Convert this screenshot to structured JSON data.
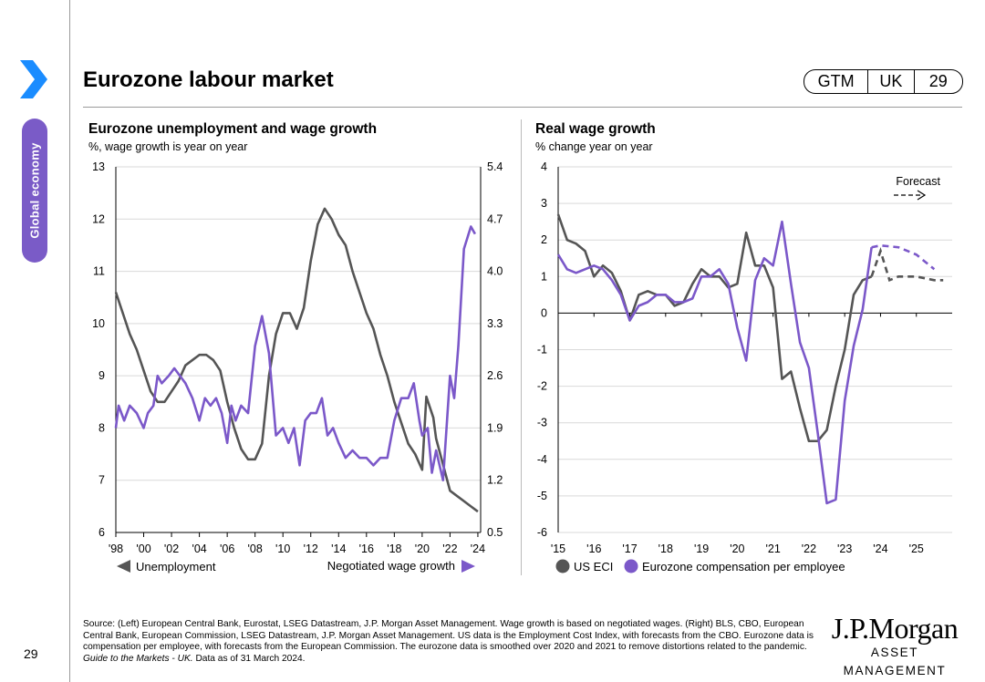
{
  "sidebar": {
    "section_label": "Global economy",
    "page_number": "29",
    "accent_color": "#7a5bc7",
    "chevron_color": "#1a8cff"
  },
  "header": {
    "title": "Eurozone labour market",
    "badge": {
      "gtm": "GTM",
      "region": "UK",
      "page": "29"
    }
  },
  "colors": {
    "grey": "#555555",
    "purple": "#7b58c9"
  },
  "chart_data": [
    {
      "type": "line",
      "title": "Eurozone unemployment and wage growth",
      "subtitle": "%, wage growth is year on year",
      "x_range": [
        1998,
        2024.2
      ],
      "x_ticks": [
        "'98",
        "'00",
        "'02",
        "'04",
        "'06",
        "'08",
        "'10",
        "'12",
        "'14",
        "'16",
        "'18",
        "'20",
        "'22",
        "'24"
      ],
      "ylim_left": [
        6,
        13
      ],
      "y_ticks_left": [
        "6",
        "7",
        "8",
        "9",
        "10",
        "11",
        "12",
        "13"
      ],
      "ylim_right": [
        0.5,
        5.4
      ],
      "y_ticks_right": [
        "0.5",
        "1.2",
        "1.9",
        "2.6",
        "3.3",
        "4.0",
        "4.7",
        "5.4"
      ],
      "grid": "horizontal",
      "series": [
        {
          "name": "Unemployment",
          "axis": "left",
          "legend_position": "bottom-left",
          "points": [
            [
              1998,
              10.6
            ],
            [
              1998.5,
              10.2
            ],
            [
              1999,
              9.8
            ],
            [
              1999.5,
              9.5
            ],
            [
              2000,
              9.1
            ],
            [
              2000.5,
              8.7
            ],
            [
              2001,
              8.5
            ],
            [
              2001.5,
              8.5
            ],
            [
              2002,
              8.7
            ],
            [
              2002.5,
              8.9
            ],
            [
              2003,
              9.2
            ],
            [
              2003.5,
              9.3
            ],
            [
              2004,
              9.4
            ],
            [
              2004.5,
              9.4
            ],
            [
              2005,
              9.3
            ],
            [
              2005.5,
              9.1
            ],
            [
              2006,
              8.5
            ],
            [
              2006.5,
              8.0
            ],
            [
              2007,
              7.6
            ],
            [
              2007.5,
              7.4
            ],
            [
              2008,
              7.4
            ],
            [
              2008.5,
              7.7
            ],
            [
              2009,
              9.0
            ],
            [
              2009.5,
              9.8
            ],
            [
              2010,
              10.2
            ],
            [
              2010.5,
              10.2
            ],
            [
              2011,
              9.9
            ],
            [
              2011.5,
              10.3
            ],
            [
              2012,
              11.2
            ],
            [
              2012.5,
              11.9
            ],
            [
              2013,
              12.2
            ],
            [
              2013.5,
              12.0
            ],
            [
              2014,
              11.7
            ],
            [
              2014.5,
              11.5
            ],
            [
              2015,
              11.0
            ],
            [
              2015.5,
              10.6
            ],
            [
              2016,
              10.2
            ],
            [
              2016.5,
              9.9
            ],
            [
              2017,
              9.4
            ],
            [
              2017.5,
              9.0
            ],
            [
              2018,
              8.5
            ],
            [
              2018.5,
              8.1
            ],
            [
              2019,
              7.7
            ],
            [
              2019.5,
              7.5
            ],
            [
              2020,
              7.2
            ],
            [
              2020.3,
              8.6
            ],
            [
              2020.8,
              8.2
            ],
            [
              2021,
              7.8
            ],
            [
              2021.5,
              7.3
            ],
            [
              2022,
              6.8
            ],
            [
              2022.5,
              6.7
            ],
            [
              2023,
              6.6
            ],
            [
              2023.5,
              6.5
            ],
            [
              2024,
              6.4
            ]
          ]
        },
        {
          "name": "Negotiated wage growth",
          "axis": "right",
          "legend_position": "bottom-right",
          "points": [
            [
              1998,
              1.9
            ],
            [
              1998.2,
              2.2
            ],
            [
              1998.6,
              2.0
            ],
            [
              1999,
              2.2
            ],
            [
              1999.5,
              2.1
            ],
            [
              2000,
              1.9
            ],
            [
              2000.3,
              2.1
            ],
            [
              2000.7,
              2.2
            ],
            [
              2001,
              2.6
            ],
            [
              2001.3,
              2.5
            ],
            [
              2001.8,
              2.6
            ],
            [
              2002.2,
              2.7
            ],
            [
              2002.6,
              2.6
            ],
            [
              2003,
              2.5
            ],
            [
              2003.5,
              2.3
            ],
            [
              2004,
              2.0
            ],
            [
              2004.4,
              2.3
            ],
            [
              2004.8,
              2.2
            ],
            [
              2005.2,
              2.3
            ],
            [
              2005.6,
              2.1
            ],
            [
              2006,
              1.7
            ],
            [
              2006.3,
              2.2
            ],
            [
              2006.6,
              2.0
            ],
            [
              2007,
              2.2
            ],
            [
              2007.5,
              2.1
            ],
            [
              2008,
              3.0
            ],
            [
              2008.5,
              3.4
            ],
            [
              2009,
              2.9
            ],
            [
              2009.5,
              1.8
            ],
            [
              2010,
              1.9
            ],
            [
              2010.4,
              1.7
            ],
            [
              2010.8,
              1.9
            ],
            [
              2011.2,
              1.4
            ],
            [
              2011.6,
              2.0
            ],
            [
              2012,
              2.1
            ],
            [
              2012.4,
              2.1
            ],
            [
              2012.8,
              2.3
            ],
            [
              2013.2,
              1.8
            ],
            [
              2013.6,
              1.9
            ],
            [
              2014,
              1.7
            ],
            [
              2014.5,
              1.5
            ],
            [
              2015,
              1.6
            ],
            [
              2015.5,
              1.5
            ],
            [
              2016,
              1.5
            ],
            [
              2016.5,
              1.4
            ],
            [
              2017,
              1.5
            ],
            [
              2017.5,
              1.5
            ],
            [
              2018,
              2.0
            ],
            [
              2018.5,
              2.3
            ],
            [
              2019,
              2.3
            ],
            [
              2019.4,
              2.5
            ],
            [
              2019.8,
              2.0
            ],
            [
              2020,
              1.8
            ],
            [
              2020.4,
              1.9
            ],
            [
              2020.7,
              1.3
            ],
            [
              2021,
              1.6
            ],
            [
              2021.5,
              1.2
            ],
            [
              2022,
              2.6
            ],
            [
              2022.3,
              2.3
            ],
            [
              2022.6,
              3.0
            ],
            [
              2023,
              4.3
            ],
            [
              2023.5,
              4.6
            ],
            [
              2023.8,
              4.5
            ]
          ]
        }
      ]
    },
    {
      "type": "line",
      "title": "Real wage growth",
      "subtitle": "% change year on year",
      "annotation": "Forecast",
      "x_range": [
        2015,
        2026
      ],
      "x_ticks": [
        "'15",
        "'16",
        "'17",
        "'18",
        "'19",
        "'20",
        "'21",
        "'22",
        "'23",
        "'24",
        "'25"
      ],
      "ylim": [
        -6,
        4
      ],
      "y_ticks": [
        "-6",
        "-5",
        "-4",
        "-3",
        "-2",
        "-1",
        "0",
        "1",
        "2",
        "3",
        "4"
      ],
      "grid": "horizontal",
      "series": [
        {
          "name": "US ECI",
          "points": [
            [
              2015,
              2.7
            ],
            [
              2015.25,
              2.0
            ],
            [
              2015.5,
              1.9
            ],
            [
              2015.75,
              1.7
            ],
            [
              2016,
              1.0
            ],
            [
              2016.25,
              1.3
            ],
            [
              2016.5,
              1.1
            ],
            [
              2016.75,
              0.6
            ],
            [
              2017,
              -0.2
            ],
            [
              2017.25,
              0.5
            ],
            [
              2017.5,
              0.6
            ],
            [
              2017.75,
              0.5
            ],
            [
              2018,
              0.5
            ],
            [
              2018.25,
              0.2
            ],
            [
              2018.5,
              0.3
            ],
            [
              2018.75,
              0.8
            ],
            [
              2019,
              1.2
            ],
            [
              2019.25,
              1.0
            ],
            [
              2019.5,
              1.0
            ],
            [
              2019.75,
              0.7
            ],
            [
              2020,
              0.8
            ],
            [
              2020.25,
              2.2
            ],
            [
              2020.5,
              1.3
            ],
            [
              2020.75,
              1.3
            ],
            [
              2021,
              0.7
            ],
            [
              2021.25,
              -1.8
            ],
            [
              2021.5,
              -1.6
            ],
            [
              2021.75,
              -2.6
            ],
            [
              2022,
              -3.5
            ],
            [
              2022.25,
              -3.5
            ],
            [
              2022.5,
              -3.2
            ],
            [
              2022.75,
              -2.0
            ],
            [
              2023,
              -1.0
            ],
            [
              2023.25,
              0.5
            ],
            [
              2023.5,
              0.9
            ],
            [
              2023.75,
              1.0
            ]
          ],
          "forecast_points": [
            [
              2023.75,
              1.0
            ],
            [
              2024,
              1.7
            ],
            [
              2024.25,
              0.9
            ],
            [
              2024.5,
              1.0
            ],
            [
              2025,
              1.0
            ],
            [
              2025.5,
              0.9
            ],
            [
              2025.75,
              0.9
            ]
          ]
        },
        {
          "name": "Eurozone compensation per employee",
          "points": [
            [
              2015,
              1.6
            ],
            [
              2015.25,
              1.2
            ],
            [
              2015.5,
              1.1
            ],
            [
              2015.75,
              1.2
            ],
            [
              2016,
              1.3
            ],
            [
              2016.25,
              1.2
            ],
            [
              2016.5,
              0.9
            ],
            [
              2016.75,
              0.5
            ],
            [
              2017,
              -0.2
            ],
            [
              2017.25,
              0.2
            ],
            [
              2017.5,
              0.3
            ],
            [
              2017.75,
              0.5
            ],
            [
              2018,
              0.5
            ],
            [
              2018.25,
              0.3
            ],
            [
              2018.5,
              0.3
            ],
            [
              2018.75,
              0.4
            ],
            [
              2019,
              1.0
            ],
            [
              2019.25,
              1.0
            ],
            [
              2019.5,
              1.2
            ],
            [
              2019.75,
              0.8
            ],
            [
              2020,
              -0.4
            ],
            [
              2020.25,
              -1.3
            ],
            [
              2020.5,
              0.9
            ],
            [
              2020.75,
              1.5
            ],
            [
              2021,
              1.3
            ],
            [
              2021.25,
              2.5
            ],
            [
              2021.5,
              0.8
            ],
            [
              2021.75,
              -0.8
            ],
            [
              2022,
              -1.5
            ],
            [
              2022.25,
              -3.3
            ],
            [
              2022.5,
              -5.2
            ],
            [
              2022.75,
              -5.1
            ],
            [
              2023,
              -2.4
            ],
            [
              2023.25,
              -0.9
            ],
            [
              2023.5,
              0.1
            ],
            [
              2023.75,
              1.8
            ]
          ],
          "forecast_points": [
            [
              2023.75,
              1.8
            ],
            [
              2024,
              1.85
            ],
            [
              2024.5,
              1.8
            ],
            [
              2025,
              1.6
            ],
            [
              2025.5,
              1.2
            ]
          ]
        }
      ]
    }
  ],
  "footer": {
    "source_left": "Source: (Left) European Central Bank, Eurostat, LSEG Datastream, J.P. Morgan Asset Management. Wage growth is based on negotiated wages. (Right) BLS, CBO, European Central Bank, European Commission, LSEG Datastream, J.P. Morgan Asset Management. US data is the Employment Cost Index, with forecasts from the CBO. Eurozone data is compensation per employee, with forecasts from the European Commission. The eurozone data is smoothed over 2020 and 2021 to remove distortions related to the pandemic. ",
    "source_italic": "Guide to the Markets - UK.",
    "source_tail": " Data as of 31 March 2024.",
    "logo_main": "J.P.Morgan",
    "logo_sub": "ASSET MANAGEMENT"
  }
}
